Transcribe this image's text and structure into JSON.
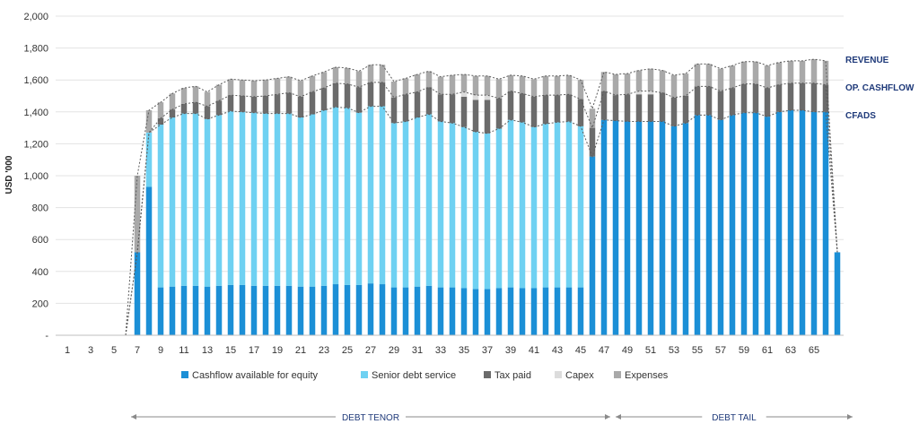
{
  "chart_data": {
    "type": "bar",
    "ylabel": "USD '000",
    "ylim": [
      0,
      2000
    ],
    "yticks": [
      {
        "value": 0,
        "label": "-"
      },
      {
        "value": 200,
        "label": "200"
      },
      {
        "value": 400,
        "label": "400"
      },
      {
        "value": 600,
        "label": "600"
      },
      {
        "value": 800,
        "label": "800"
      },
      {
        "value": 1000,
        "label": "1,000"
      },
      {
        "value": 1200,
        "label": "1,200"
      },
      {
        "value": 1400,
        "label": "1,400"
      },
      {
        "value": 1600,
        "label": "1,600"
      },
      {
        "value": 1800,
        "label": "1,800"
      },
      {
        "value": 2000,
        "label": "2,000"
      }
    ],
    "categories": [
      1,
      2,
      3,
      4,
      5,
      6,
      7,
      8,
      9,
      10,
      11,
      12,
      13,
      14,
      15,
      16,
      17,
      18,
      19,
      20,
      21,
      22,
      23,
      24,
      25,
      26,
      27,
      28,
      29,
      30,
      31,
      32,
      33,
      34,
      35,
      36,
      37,
      38,
      39,
      40,
      41,
      42,
      43,
      44,
      45,
      46,
      47,
      48,
      49,
      50,
      51,
      52,
      53,
      54,
      55,
      56,
      57,
      58,
      59,
      60,
      61,
      62,
      63,
      64,
      65,
      66,
      67
    ],
    "x_tick_labels": [
      "1",
      "3",
      "5",
      "7",
      "9",
      "11",
      "13",
      "15",
      "17",
      "19",
      "21",
      "23",
      "25",
      "27",
      "29",
      "31",
      "33",
      "35",
      "37",
      "39",
      "41",
      "43",
      "45",
      "47",
      "49",
      "51",
      "53",
      "55",
      "57",
      "59",
      "61",
      "63",
      "65"
    ],
    "grid": true,
    "legend_position": "bottom",
    "series": [
      {
        "name": "Cashflow available for equity",
        "color": "#1b8fd6",
        "values": [
          0,
          0,
          0,
          0,
          0,
          0,
          520,
          930,
          300,
          305,
          310,
          310,
          305,
          310,
          315,
          315,
          310,
          310,
          310,
          310,
          305,
          305,
          310,
          320,
          315,
          315,
          325,
          320,
          300,
          300,
          305,
          310,
          300,
          300,
          295,
          290,
          290,
          295,
          300,
          295,
          295,
          300,
          300,
          300,
          300,
          1120,
          1350,
          1345,
          1340,
          1340,
          1340,
          1340,
          1310,
          1330,
          1380,
          1380,
          1350,
          1380,
          1395,
          1395,
          1370,
          1400,
          1410,
          1410,
          1400,
          1400,
          520
        ]
      },
      {
        "name": "Senior debt service",
        "color": "#6fd1f2",
        "values": [
          0,
          0,
          0,
          0,
          0,
          0,
          0,
          340,
          1020,
          1060,
          1080,
          1080,
          1050,
          1070,
          1090,
          1085,
          1085,
          1080,
          1080,
          1080,
          1060,
          1080,
          1100,
          1110,
          1110,
          1080,
          1110,
          1115,
          1030,
          1040,
          1060,
          1075,
          1040,
          1030,
          1010,
          985,
          975,
          1000,
          1050,
          1040,
          1010,
          1025,
          1035,
          1040,
          1010,
          0,
          0,
          0,
          0,
          0,
          0,
          0,
          0,
          0,
          0,
          0,
          0,
          0,
          0,
          0,
          0,
          0,
          0,
          0,
          0,
          0,
          0
        ]
      },
      {
        "name": "Tax paid",
        "color": "#6b6b6b",
        "values": [
          0,
          0,
          0,
          0,
          0,
          0,
          0,
          0,
          40,
          50,
          60,
          70,
          80,
          90,
          100,
          100,
          100,
          110,
          120,
          130,
          130,
          140,
          140,
          150,
          150,
          160,
          150,
          150,
          160,
          170,
          160,
          170,
          170,
          180,
          190,
          200,
          210,
          190,
          180,
          180,
          190,
          180,
          170,
          170,
          170,
          180,
          180,
          160,
          170,
          170,
          170,
          180,
          180,
          170,
          180,
          180,
          180,
          170,
          180,
          180,
          180,
          170,
          170,
          170,
          180,
          170,
          0
        ]
      },
      {
        "name": "Capex",
        "color": "#dcdcdc",
        "values": [
          0,
          0,
          0,
          0,
          0,
          0,
          0,
          0,
          0,
          0,
          0,
          0,
          0,
          0,
          0,
          0,
          0,
          0,
          0,
          0,
          0,
          0,
          0,
          0,
          0,
          0,
          0,
          0,
          0,
          0,
          0,
          0,
          0,
          0,
          30,
          30,
          30,
          0,
          0,
          0,
          0,
          0,
          0,
          0,
          0,
          0,
          0,
          0,
          0,
          20,
          20,
          0,
          0,
          0,
          0,
          0,
          0,
          0,
          0,
          0,
          0,
          0,
          0,
          0,
          0,
          0,
          0
        ]
      },
      {
        "name": "Expenses",
        "color": "#a9a9a9",
        "values": [
          0,
          0,
          0,
          0,
          0,
          0,
          480,
          140,
          100,
          100,
          100,
          100,
          90,
          100,
          100,
          100,
          100,
          100,
          100,
          100,
          100,
          100,
          100,
          100,
          100,
          100,
          110,
          110,
          100,
          100,
          110,
          100,
          110,
          120,
          110,
          120,
          120,
          120,
          100,
          110,
          110,
          120,
          120,
          120,
          120,
          120,
          120,
          130,
          130,
          130,
          140,
          140,
          140,
          140,
          140,
          140,
          140,
          140,
          140,
          140,
          140,
          140,
          140,
          140,
          150,
          150,
          0
        ]
      }
    ],
    "line_labels": [
      "REVENUE",
      "OP. CASHFLOW",
      "CFADS"
    ],
    "span_labels": [
      "DEBT TENOR",
      "DEBT TAIL"
    ]
  }
}
